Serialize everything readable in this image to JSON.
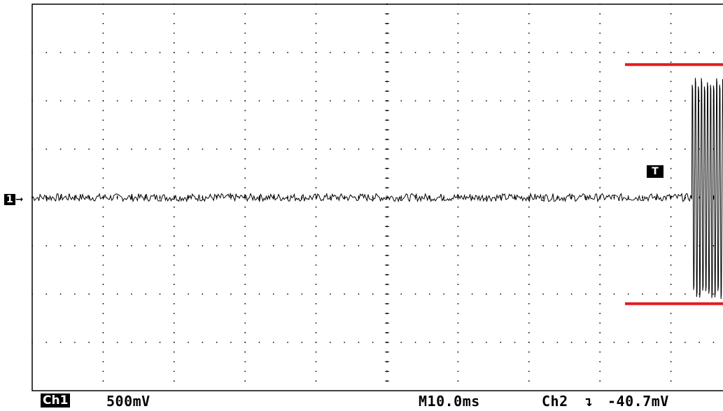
{
  "status_bar": {
    "channel_badge": "Ch1",
    "volts_per_div": "500mV",
    "timebase": "M10.0ms",
    "trigger_source": "Ch2",
    "trigger_slope_icon": "falling-edge-icon",
    "trigger_level": "-40.7mV"
  },
  "markers": {
    "channel_marker": "1",
    "trigger_marker": "T"
  },
  "colors": {
    "trace": "#000000",
    "graticule": "#000000",
    "cursor": "#e8191c",
    "background": "#ffffff"
  },
  "chart_data": {
    "type": "line",
    "title": "",
    "xlabel": "",
    "ylabel": "",
    "x_unit_per_div": "10.0ms",
    "y_unit_per_div": "500mV",
    "x_divisions": 10,
    "y_divisions": 8,
    "grid": true,
    "series": [
      {
        "segments": [
          {
            "kind": "noise",
            "x_div_start": 0,
            "x_div_end": 9.3,
            "amplitude_div": 0.05,
            "offset_div": 0
          },
          {
            "kind": "oscillation",
            "x_div_start": 9.3,
            "x_div_end": 9.9,
            "low_div": -2.1,
            "high_div": 2.5,
            "cycles": 14
          }
        ]
      }
    ],
    "cursor_levels_div": [
      2.75,
      -2.2
    ]
  }
}
